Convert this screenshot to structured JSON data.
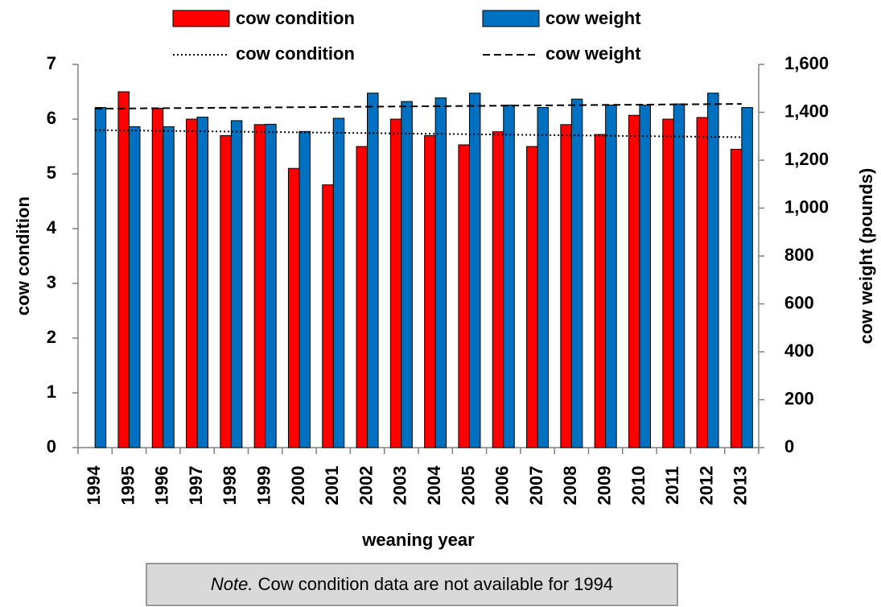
{
  "chart_data": {
    "type": "bar",
    "x_label": "weaning year",
    "y_label": "cow condition",
    "y2_label": "cow weight (pounds)",
    "categories": [
      "1994",
      "1995",
      "1996",
      "1997",
      "1998",
      "1999",
      "2000",
      "2001",
      "2002",
      "2003",
      "2004",
      "2005",
      "2006",
      "2007",
      "2008",
      "2009",
      "2010",
      "2011",
      "2012",
      "2013"
    ],
    "series": [
      {
        "name": "cow condition",
        "color": "#ff0000",
        "axis": "y",
        "values": [
          null,
          6.5,
          6.2,
          6.0,
          5.7,
          5.9,
          5.1,
          4.8,
          5.5,
          6.0,
          5.7,
          5.53,
          5.77,
          5.5,
          5.9,
          5.72,
          6.07,
          6.0,
          6.03,
          5.45
        ]
      },
      {
        "name": "cow weight",
        "color": "#0070c0",
        "axis": "y2",
        "values": [
          1420,
          1340,
          1340,
          1380,
          1365,
          1350,
          1320,
          1375,
          1480,
          1445,
          1460,
          1480,
          1430,
          1420,
          1455,
          1430,
          1430,
          1435,
          1480,
          1420
        ]
      }
    ],
    "trends": [
      {
        "name": "cow condition",
        "style": "dotted",
        "axis": "y",
        "values": [
          5.8,
          5.67
        ]
      },
      {
        "name": "cow weight",
        "style": "dashed",
        "axis": "y2",
        "values": [
          1415,
          1435
        ]
      }
    ],
    "ylim": [
      0,
      7
    ],
    "yticks": [
      0,
      1,
      2,
      3,
      4,
      5,
      6,
      7
    ],
    "y2lim": [
      0,
      1600
    ],
    "y2ticks": [
      0,
      200,
      400,
      600,
      800,
      {
        "value": 1000,
        "label": "1,000"
      },
      {
        "value": 1200,
        "label": "1,200"
      },
      {
        "value": 1400,
        "label": "1,400"
      },
      {
        "value": 1600,
        "label": "1,600"
      }
    ],
    "legend": "top",
    "note_label": "Note.",
    "note": "Cow condition data are not available for 1994"
  }
}
